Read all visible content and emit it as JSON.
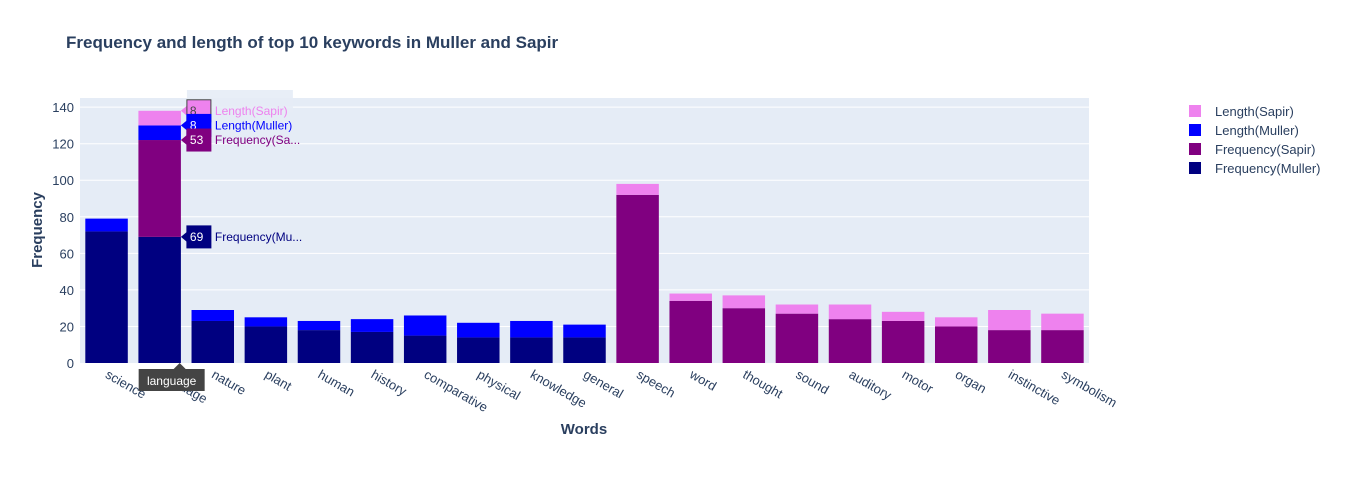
{
  "chart_data": {
    "type": "bar",
    "barmode": "stack",
    "title": "Frequency and length of top 10 keywords in Muller and Sapir",
    "xlabel": "Words",
    "ylabel": "Frequency",
    "ylim": [
      0,
      145
    ],
    "yticks": [
      0,
      20,
      40,
      60,
      80,
      100,
      120,
      140
    ],
    "categories": [
      "science",
      "language",
      "nature",
      "plant",
      "human",
      "history",
      "comparative",
      "physical",
      "knowledge",
      "general",
      "speech",
      "word",
      "thought",
      "sound",
      "auditory",
      "motor",
      "organ",
      "instinctive",
      "symbolism"
    ],
    "series": [
      {
        "name": "Frequency(Muller)",
        "color": "#000080",
        "values": [
          72,
          69,
          23,
          20,
          18,
          17,
          15,
          14,
          14,
          14,
          0,
          0,
          0,
          0,
          0,
          0,
          0,
          0,
          0
        ]
      },
      {
        "name": "Frequency(Sapir)",
        "color": "#800080",
        "values": [
          0,
          53,
          0,
          0,
          0,
          0,
          0,
          0,
          0,
          0,
          92,
          34,
          30,
          27,
          24,
          23,
          20,
          18,
          18
        ]
      },
      {
        "name": "Length(Muller)",
        "color": "#0000ff",
        "values": [
          7,
          8,
          6,
          5,
          5,
          7,
          11,
          8,
          9,
          7,
          0,
          0,
          0,
          0,
          0,
          0,
          0,
          0,
          0
        ]
      },
      {
        "name": "Length(Sapir)",
        "color": "#ee82ee",
        "values": [
          0,
          8,
          0,
          0,
          0,
          0,
          0,
          0,
          0,
          0,
          6,
          4,
          7,
          5,
          8,
          5,
          5,
          11,
          9
        ]
      }
    ],
    "legend_order": [
      "Length(Sapir)",
      "Length(Muller)",
      "Frequency(Sapir)",
      "Frequency(Muller)"
    ],
    "legend_position": "top-right",
    "grid": true,
    "hover": {
      "category": "language",
      "category_label": "language",
      "labels": [
        {
          "series": "Length(Sapir)",
          "value": "8",
          "name": "Length(Sapir)"
        },
        {
          "series": "Length(Muller)",
          "value": "8",
          "name": "Length(Muller)"
        },
        {
          "series": "Frequency(Sapir)",
          "value": "53",
          "name": "Frequency(Sa..."
        },
        {
          "series": "Frequency(Muller)",
          "value": "69",
          "name": "Frequency(Mu..."
        }
      ]
    }
  }
}
